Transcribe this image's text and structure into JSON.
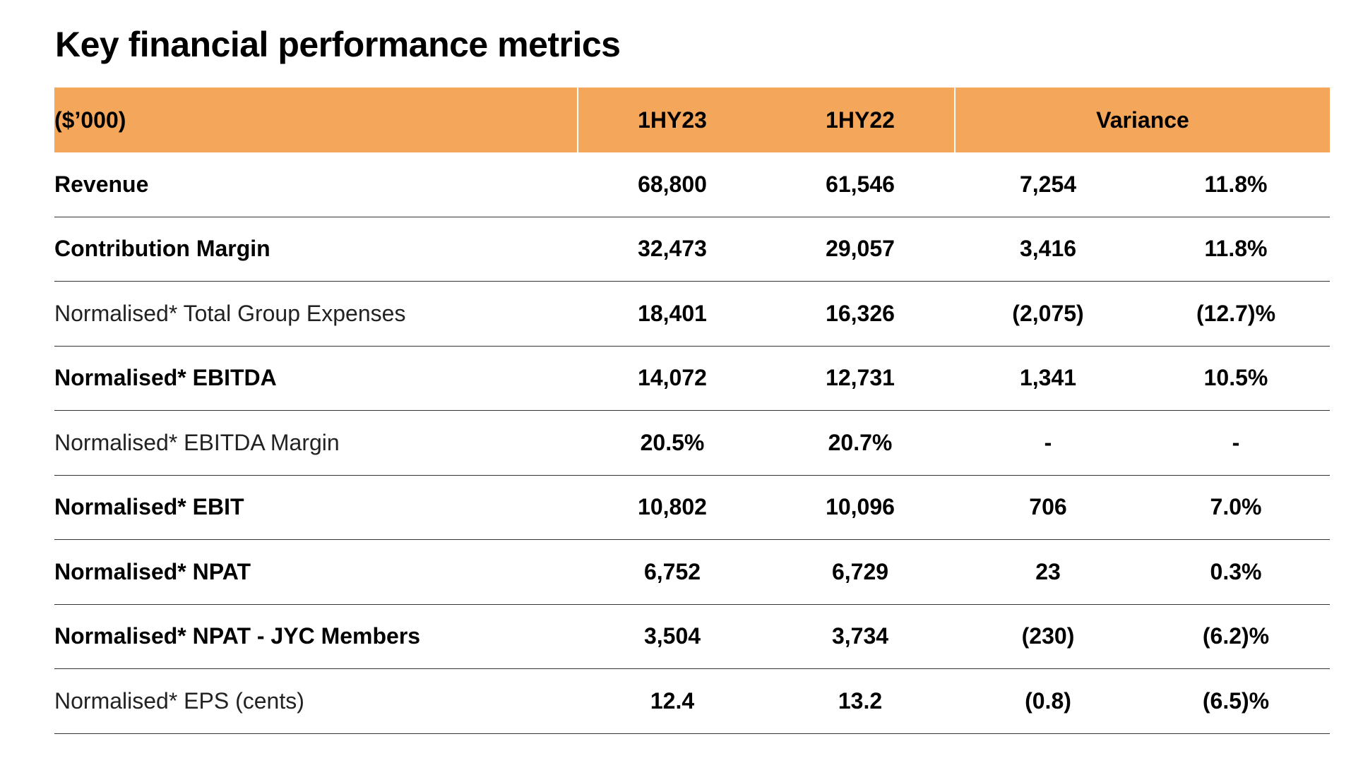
{
  "title": "Key financial performance metrics",
  "table": {
    "headers": {
      "label": "($’000)",
      "col1": "1HY23",
      "col2": "1HY22",
      "variance": "Variance"
    },
    "rows": [
      {
        "label": "Revenue",
        "style": "bold",
        "hy23": "68,800",
        "hy22": "61,546",
        "var_abs": "7,254",
        "var_pct": "11.8%"
      },
      {
        "label": "Contribution Margin",
        "style": "bold",
        "hy23": "32,473",
        "hy22": "29,057",
        "var_abs": "3,416",
        "var_pct": "11.8%"
      },
      {
        "label": "Normalised* Total Group Expenses",
        "style": "light",
        "hy23": "18,401",
        "hy22": "16,326",
        "var_abs": "(2,075)",
        "var_pct": "(12.7)%"
      },
      {
        "label": "Normalised* EBITDA",
        "style": "bold",
        "hy23": "14,072",
        "hy22": "12,731",
        "var_abs": "1,341",
        "var_pct": "10.5%"
      },
      {
        "label": "Normalised* EBITDA Margin",
        "style": "light",
        "hy23": "20.5%",
        "hy22": "20.7%",
        "var_abs": "-",
        "var_pct": "-"
      },
      {
        "label": "Normalised* EBIT",
        "style": "bold",
        "hy23": "10,802",
        "hy22": "10,096",
        "var_abs": "706",
        "var_pct": "7.0%"
      },
      {
        "label": "Normalised* NPAT",
        "style": "bold",
        "hy23": "6,752",
        "hy22": "6,729",
        "var_abs": "23",
        "var_pct": "0.3%"
      },
      {
        "label": "Normalised* NPAT - JYC Members",
        "style": "bold",
        "hy23": "3,504",
        "hy22": "3,734",
        "var_abs": "(230)",
        "var_pct": "(6.2)%"
      },
      {
        "label": "Normalised* EPS (cents)",
        "style": "light",
        "hy23": "12.4",
        "hy22": "13.2",
        "var_abs": "(0.8)",
        "var_pct": "(6.5)%"
      }
    ]
  },
  "colors": {
    "header_bg": "#F4A75A",
    "text": "#000000",
    "divider": "#333333"
  }
}
